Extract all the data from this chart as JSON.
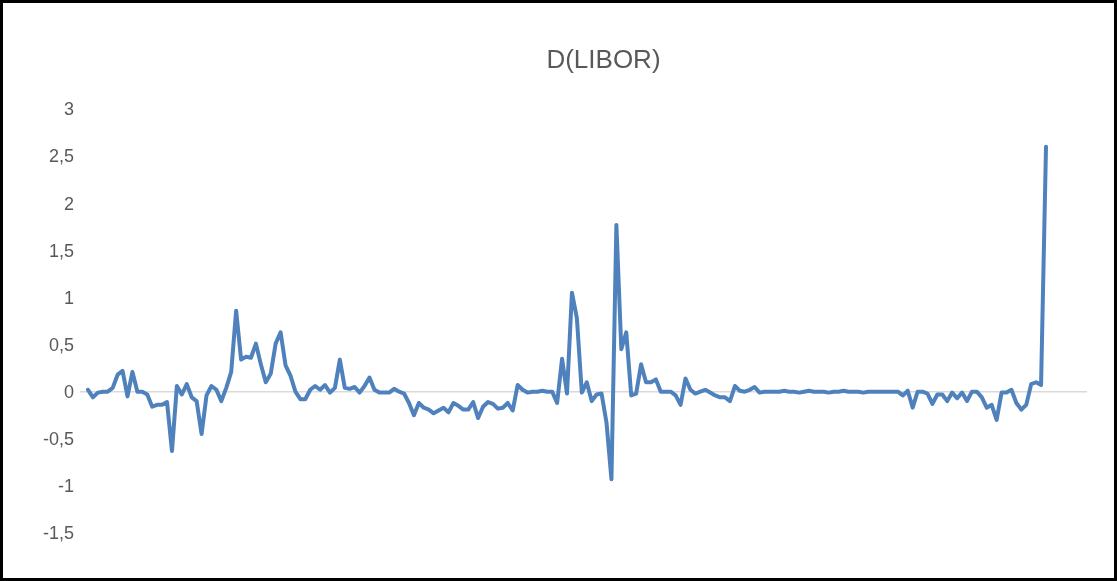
{
  "chart_data": {
    "type": "line",
    "title": "D(LIBOR)",
    "color": "#4f81bd",
    "values": [
      0.02,
      -0.06,
      -0.01,
      0,
      0,
      0.04,
      0.18,
      0.22,
      -0.05,
      0.21,
      0,
      0,
      -0.03,
      -0.16,
      -0.14,
      -0.14,
      -0.11,
      -0.63,
      0.06,
      -0.03,
      0.08,
      -0.06,
      -0.1,
      -0.45,
      -0.04,
      0.06,
      0.02,
      -0.1,
      0.04,
      0.21,
      0.86,
      0.34,
      0.37,
      0.36,
      0.51,
      0.29,
      0.1,
      0.19,
      0.51,
      0.63,
      0.28,
      0.17,
      0,
      -0.08,
      -0.08,
      0.02,
      0.06,
      0.02,
      0.07,
      -0.01,
      0.04,
      0.34,
      0.04,
      0.03,
      0.05,
      -0.01,
      0.06,
      0.15,
      0.02,
      -0.01,
      -0.01,
      -0.01,
      0.03,
      0,
      -0.02,
      -0.12,
      -0.25,
      -0.12,
      -0.17,
      -0.19,
      -0.23,
      -0.2,
      -0.17,
      -0.22,
      -0.12,
      -0.15,
      -0.19,
      -0.19,
      -0.11,
      -0.28,
      -0.16,
      -0.11,
      -0.13,
      -0.18,
      -0.17,
      -0.12,
      -0.2,
      0.07,
      0.02,
      -0.01,
      0,
      0,
      0.01,
      0,
      0,
      -0.12,
      0.35,
      -0.02,
      1.05,
      0.78,
      -0.01,
      0.1,
      -0.1,
      -0.03,
      -0.02,
      -0.33,
      -0.93,
      1.77,
      0.45,
      0.63,
      -0.04,
      -0.02,
      0.29,
      0.1,
      0.1,
      0.13,
      0,
      0,
      0,
      -0.04,
      -0.14,
      0.14,
      0.02,
      -0.02,
      0,
      0.02,
      -0.01,
      -0.04,
      -0.06,
      -0.06,
      -0.1,
      0.06,
      0.01,
      0,
      0.02,
      0.05,
      -0.01,
      0,
      0,
      0,
      0,
      0.01,
      0,
      0,
      -0.01,
      0,
      0.01,
      0,
      0,
      0,
      -0.01,
      0,
      0,
      0.01,
      0,
      0,
      0,
      -0.01,
      0,
      0,
      0,
      0,
      0,
      0,
      0,
      -0.04,
      0.01,
      -0.17,
      0,
      0,
      -0.02,
      -0.13,
      -0.03,
      -0.03,
      -0.1,
      -0.01,
      -0.07,
      -0.01,
      -0.1,
      0,
      0,
      -0.06,
      -0.17,
      -0.14,
      -0.3,
      -0.01,
      -0.01,
      0.02,
      -0.12,
      -0.19,
      -0.14,
      0.08,
      0.1,
      0.07,
      2.6
    ],
    "ylim": [
      -1.5,
      3
    ],
    "yticks": [
      {
        "value": -1.5,
        "label": "-1,5"
      },
      {
        "value": -1,
        "label": "-1"
      },
      {
        "value": -0.5,
        "label": "-0,5"
      },
      {
        "value": 0,
        "label": "0"
      },
      {
        "value": 0.5,
        "label": "0,5"
      },
      {
        "value": 1,
        "label": "1"
      },
      {
        "value": 1.5,
        "label": "1,5"
      },
      {
        "value": 2,
        "label": "2"
      },
      {
        "value": 2.5,
        "label": "2,5"
      },
      {
        "value": 3,
        "label": "3"
      }
    ]
  }
}
